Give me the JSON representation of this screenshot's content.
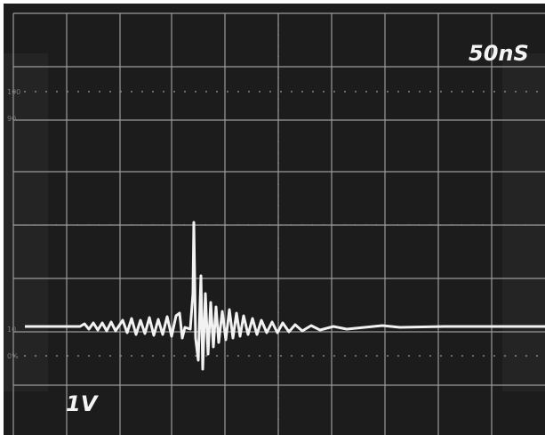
{
  "time_scale": "50nS",
  "volt_scale": "1V",
  "graticule_labels": [
    "100",
    "90",
    "10",
    "0%"
  ]
}
